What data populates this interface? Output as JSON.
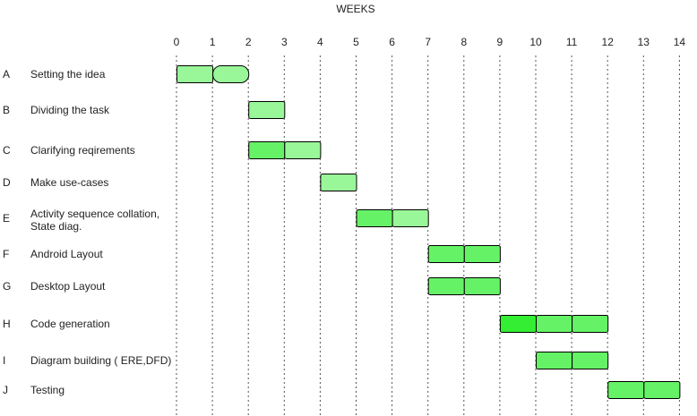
{
  "header": {
    "title": "WEEKS"
  },
  "weeks": [
    "0",
    "1",
    "2",
    "3",
    "4",
    "5",
    "6",
    "7",
    "8",
    "9",
    "10",
    "11",
    "12",
    "13",
    "14"
  ],
  "tasks": [
    {
      "id": "A",
      "name": "Setting the idea",
      "segments": [
        {
          "start": 0,
          "end": 1,
          "color": "#99f799",
          "shape": "rect"
        },
        {
          "start": 1,
          "end": 2,
          "color": "#99f799",
          "shape": "pill"
        }
      ]
    },
    {
      "id": "B",
      "name": "Dividing the task",
      "segments": [
        {
          "start": 2,
          "end": 3,
          "color": "#99f799",
          "shape": "rect"
        }
      ]
    },
    {
      "id": "C",
      "name": "Clarifying reqirements",
      "segments": [
        {
          "start": 2,
          "end": 3,
          "color": "#66f266",
          "shape": "rect"
        },
        {
          "start": 3,
          "end": 4,
          "color": "#99f799",
          "shape": "rect"
        }
      ]
    },
    {
      "id": "D",
      "name": "Make use-cases",
      "segments": [
        {
          "start": 4,
          "end": 5,
          "color": "#99f799",
          "shape": "rect"
        }
      ]
    },
    {
      "id": "E",
      "name": "Activity sequence collation,",
      "name2": "State diag.",
      "segments": [
        {
          "start": 5,
          "end": 6,
          "color": "#66f266",
          "shape": "rect"
        },
        {
          "start": 6,
          "end": 7,
          "color": "#99f799",
          "shape": "rect"
        }
      ]
    },
    {
      "id": "F",
      "name": "Android Layout",
      "segments": [
        {
          "start": 7,
          "end": 8,
          "color": "#66f266",
          "shape": "rect"
        },
        {
          "start": 8,
          "end": 9,
          "color": "#66f266",
          "shape": "rect"
        }
      ]
    },
    {
      "id": "G",
      "name": "Desktop Layout",
      "segments": [
        {
          "start": 7,
          "end": 8,
          "color": "#66f266",
          "shape": "rect"
        },
        {
          "start": 8,
          "end": 9,
          "color": "#66f266",
          "shape": "rect"
        }
      ]
    },
    {
      "id": "H",
      "name": "Code generation",
      "segments": [
        {
          "start": 9,
          "end": 10,
          "color": "#33ee33",
          "shape": "rect"
        },
        {
          "start": 10,
          "end": 11,
          "color": "#66f266",
          "shape": "rect"
        },
        {
          "start": 11,
          "end": 12,
          "color": "#66f266",
          "shape": "rect"
        }
      ]
    },
    {
      "id": "I",
      "name": "Diagram building ( ERE,DFD)",
      "segments": [
        {
          "start": 10,
          "end": 11,
          "color": "#66f266",
          "shape": "rect"
        },
        {
          "start": 11,
          "end": 12,
          "color": "#66f266",
          "shape": "rect"
        }
      ]
    },
    {
      "id": "J",
      "name": "Testing",
      "segments": [
        {
          "start": 12,
          "end": 13,
          "color": "#66f266",
          "shape": "rect"
        },
        {
          "start": 13,
          "end": 14,
          "color": "#66f266",
          "shape": "rect"
        }
      ]
    }
  ]
}
